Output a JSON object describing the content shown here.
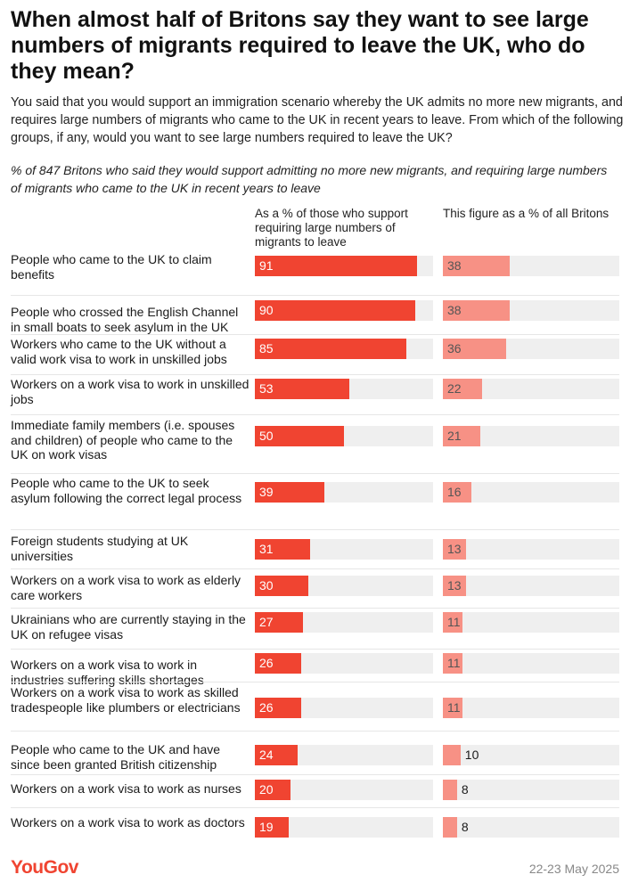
{
  "title": "When almost half of Britons say they want to see large numbers of migrants required to leave the UK, who do they mean?",
  "subtitle": "You said that you would support an immigration scenario whereby the UK admits no more new migrants, and requires large numbers of migrants who came to the UK in recent years to leave. From which of the following groups, if any, would you want to see large numbers required to leave the UK?",
  "base_note": "% of 847 Britons who said they would support admitting no more new migrants, and requiring large numbers of migrants who came to the UK in recent years to leave",
  "footer": {
    "logo": "YouGov",
    "date": "22-23 May 2025"
  },
  "colors": {
    "main_bar": "#f04431",
    "sub_bar": "#f79185",
    "track": "#efefef"
  },
  "chart_data": {
    "type": "bar",
    "orientation": "horizontal",
    "title": "When almost half of Britons say they want to see large numbers of migrants required to leave the UK, who do they mean?",
    "xlim": [
      0,
      100
    ],
    "series": [
      {
        "name": "As a % of those who support requiring large numbers of migrants to leave",
        "values": [
          91,
          90,
          85,
          53,
          50,
          39,
          31,
          30,
          27,
          26,
          26,
          24,
          20,
          19
        ]
      },
      {
        "name": "This figure as a % of all Britons",
        "values": [
          38,
          38,
          36,
          22,
          21,
          16,
          13,
          13,
          11,
          11,
          11,
          10,
          8,
          8
        ]
      }
    ],
    "categories": [
      "People who came to the UK to claim benefits",
      "People who crossed the English Channel in small boats to seek asylum in the UK",
      "Workers who came to the UK without a valid work visa to work in unskilled jobs",
      "Workers on a work visa to work in unskilled jobs",
      "Immediate family members (i.e. spouses and children) of people who came to the UK on work visas",
      "People who came to the UK to seek asylum following the correct legal process",
      "Foreign students studying at UK universities",
      "Workers on a work visa to work as elderly care workers",
      "Ukrainians who are currently staying in the UK on refugee visas",
      "Workers on a work visa to work in industries suffering skills shortages",
      "Workers on a work visa to work as skilled tradespeople like plumbers or electricians",
      "People who came to the UK and have since been granted British citizenship",
      "Workers on a work visa to work as nurses",
      "Workers on a work visa to work as doctors"
    ]
  }
}
